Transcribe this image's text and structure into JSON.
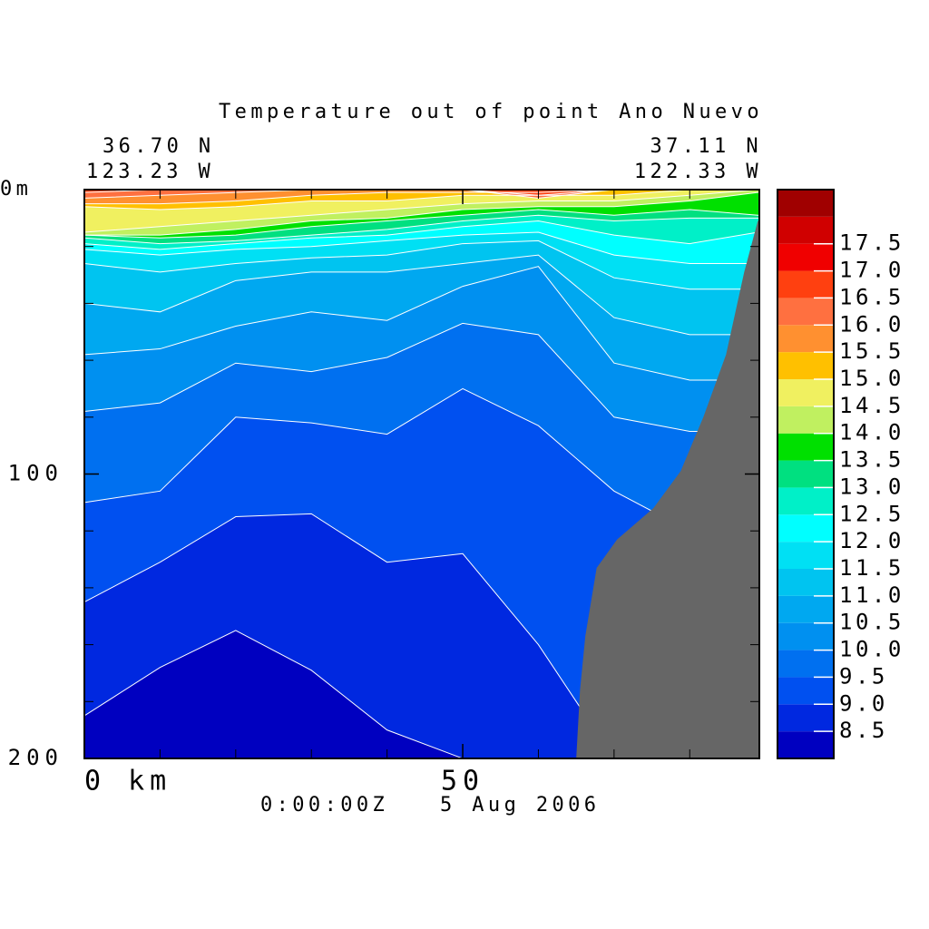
{
  "chart_data": {
    "type": "contour",
    "title": "Temperature out of point Ano Nuevo",
    "left_corner": [
      "36.70 N",
      "123.23 W"
    ],
    "right_corner": [
      "37.11 N",
      "122.33 W"
    ],
    "time": "0:00:00Z",
    "date": "5 Aug 2006",
    "xlim": [
      0,
      89.2
    ],
    "ylim": [
      200,
      0
    ],
    "xticks": [
      {
        "value": 0,
        "label": "0 km"
      },
      50
    ],
    "x_minor_ticks": [
      10,
      20,
      30,
      40,
      60,
      70,
      80
    ],
    "yticks": [
      {
        "value": 0,
        "label": "0m"
      },
      100,
      200
    ],
    "y_minor_ticks": [
      20,
      40,
      60,
      80,
      120,
      140,
      160,
      180
    ],
    "levels": [
      8.5,
      {
        "value": 9,
        "label": "9.0"
      },
      9.5,
      {
        "value": 10,
        "label": "10.0"
      },
      10.5,
      {
        "value": 11,
        "label": "11.0"
      },
      11.5,
      {
        "value": 12,
        "label": "12.0"
      },
      12.5,
      {
        "value": 13,
        "label": "13.0"
      },
      13.5,
      {
        "value": 14,
        "label": "14.0"
      },
      14.5,
      {
        "value": 15,
        "label": "15.0"
      },
      15.5,
      {
        "value": 16,
        "label": "16.0"
      },
      16.5,
      {
        "value": 17,
        "label": "17.0"
      },
      17.5
    ],
    "colors": [
      "#0000c0",
      "#0028e0",
      "#0050f0",
      "#0070f0",
      "#0090f0",
      "#00a8f0",
      "#00c4f0",
      "#00e0f4",
      "#00ffff",
      "#00f0c8",
      "#00e080",
      "#00e000",
      "#c0f060",
      "#f0f060",
      "#ffc000",
      "#ff9030",
      "#ff7040",
      "#ff4010",
      "#f00000",
      "#d00000",
      "#a00000"
    ],
    "x": [
      0,
      10,
      20,
      30,
      40,
      50,
      60,
      70,
      80,
      89
    ],
    "isotherm_depths": [
      [
        185,
        168,
        155,
        169,
        190,
        200,
        200,
        200,
        200,
        200
      ],
      [
        145,
        131,
        115,
        114,
        131,
        128,
        160,
        200,
        200,
        200
      ],
      [
        110,
        106,
        80,
        82,
        86,
        70,
        83,
        106,
        120,
        120
      ],
      [
        78,
        75,
        61,
        64,
        59,
        47,
        51,
        80,
        85,
        85
      ],
      [
        58,
        56,
        48,
        43,
        46,
        34,
        27,
        61,
        67,
        67
      ],
      [
        40,
        43,
        32,
        29,
        29,
        26,
        23,
        45,
        51,
        51
      ],
      [
        26,
        29,
        26,
        24,
        23,
        19,
        18,
        31,
        35,
        35
      ],
      [
        21,
        23,
        21,
        20,
        18,
        16,
        15,
        23,
        26,
        26
      ],
      [
        19,
        21,
        19,
        17,
        16,
        13,
        11,
        16,
        19,
        15
      ],
      [
        17,
        19,
        18,
        16,
        14,
        11,
        9,
        11,
        10,
        10
      ],
      [
        16,
        17,
        16,
        13,
        11,
        9,
        7,
        9,
        7,
        9
      ],
      [
        16,
        16,
        14,
        11,
        10,
        7,
        6,
        6,
        4,
        1
      ],
      [
        15,
        13,
        11,
        9,
        7,
        5,
        4,
        4,
        2,
        0
      ],
      [
        6,
        7,
        6,
        4,
        4,
        2,
        2,
        2,
        0,
        0
      ],
      [
        5,
        5,
        4,
        2,
        1,
        1,
        1,
        0,
        0,
        0
      ],
      [
        3,
        2,
        1,
        0,
        0,
        0,
        3,
        0,
        0,
        0
      ],
      [
        1,
        0,
        0,
        0,
        0,
        0,
        2,
        0,
        0,
        0
      ],
      [
        0,
        0,
        0,
        0,
        0,
        0,
        0,
        0,
        0,
        0
      ],
      [
        0,
        0,
        0,
        0,
        0,
        0,
        0,
        0,
        0,
        0
      ]
    ],
    "bathymetry": {
      "color": "#666666",
      "x": [
        65,
        65.5,
        66.2,
        67.7,
        70.4,
        75.2,
        78.8,
        81.8,
        84.8,
        87.2,
        89
      ],
      "depth": [
        200,
        176,
        157,
        133,
        123,
        112,
        99,
        80,
        58,
        29,
        11
      ]
    }
  }
}
